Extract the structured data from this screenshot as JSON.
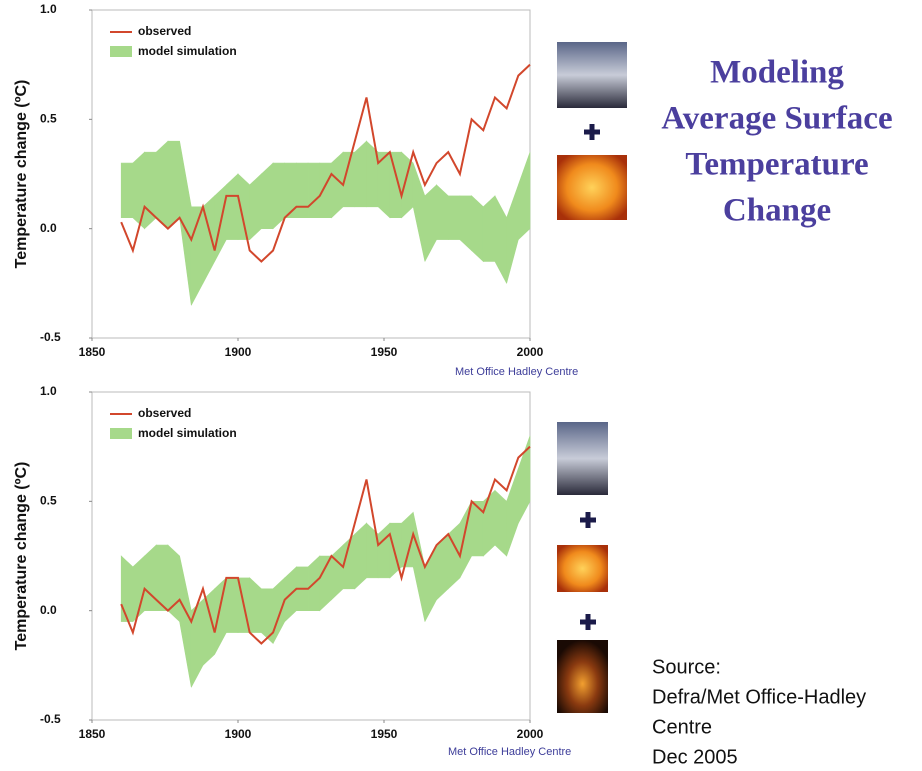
{
  "title_lines": [
    "Modeling",
    "Average Surface",
    "Temperature",
    "Change"
  ],
  "source_lines": [
    "Source:",
    "Defra/Met Office-Hadley",
    "Centre",
    "Dec 2005"
  ],
  "chart_data": [
    {
      "type": "line",
      "y_label": "Temperature change (ºC)",
      "credit": "Met Office Hadley Centre",
      "legend": "upper left",
      "xlim": [
        1850,
        2000
      ],
      "xticks": [
        1850,
        1900,
        1950,
        2000
      ],
      "ylim": [
        -0.5,
        1.0
      ],
      "yticks": [
        -0.5,
        {
          "value": 0,
          "label": "0.0"
        },
        0.5,
        {
          "value": 1.0,
          "label": "1.0"
        }
      ],
      "x": [
        1860,
        1864,
        1868,
        1872,
        1876,
        1880,
        1884,
        1888,
        1892,
        1896,
        1900,
        1904,
        1908,
        1912,
        1916,
        1920,
        1924,
        1928,
        1932,
        1936,
        1940,
        1944,
        1948,
        1952,
        1956,
        1960,
        1964,
        1968,
        1972,
        1976,
        1980,
        1984,
        1988,
        1992,
        1996,
        2000
      ],
      "series": [
        {
          "name": "observed",
          "color": "#d2472c",
          "values": [
            0.03,
            -0.1,
            0.1,
            0.05,
            0.0,
            0.05,
            -0.05,
            0.1,
            -0.1,
            0.15,
            0.15,
            -0.1,
            -0.15,
            -0.1,
            0.05,
            0.1,
            0.1,
            0.15,
            0.25,
            0.2,
            0.4,
            0.6,
            0.3,
            0.35,
            0.15,
            0.35,
            0.2,
            0.3,
            0.35,
            0.25,
            0.5,
            0.45,
            0.6,
            0.55,
            0.7,
            0.75
          ]
        }
      ],
      "bands": [
        {
          "name": "model simulation",
          "color": "#a6d98a",
          "lower": [
            0.05,
            0.05,
            0.0,
            0.05,
            0.0,
            0.05,
            -0.35,
            -0.25,
            -0.15,
            -0.05,
            -0.05,
            -0.05,
            0.0,
            0.0,
            0.05,
            0.05,
            0.05,
            0.05,
            0.05,
            0.1,
            0.1,
            0.1,
            0.1,
            0.05,
            0.05,
            0.1,
            -0.15,
            -0.05,
            -0.05,
            -0.05,
            -0.1,
            -0.15,
            -0.15,
            -0.25,
            -0.05,
            0.0
          ],
          "upper": [
            0.3,
            0.3,
            0.35,
            0.35,
            0.4,
            0.4,
            0.1,
            0.1,
            0.15,
            0.2,
            0.25,
            0.2,
            0.25,
            0.3,
            0.3,
            0.3,
            0.3,
            0.3,
            0.3,
            0.35,
            0.35,
            0.4,
            0.35,
            0.35,
            0.35,
            0.3,
            0.15,
            0.2,
            0.15,
            0.15,
            0.15,
            0.1,
            0.15,
            0.05,
            0.2,
            0.35
          ]
        }
      ]
    },
    {
      "type": "line",
      "y_label": "Temperature change (ºC)",
      "credit": "Met Office Hadley Centre",
      "legend": "upper left",
      "xlim": [
        1850,
        2000
      ],
      "xticks": [
        1850,
        1900,
        1950,
        2000
      ],
      "ylim": [
        -0.5,
        1.0
      ],
      "yticks": [
        -0.5,
        {
          "value": 0,
          "label": "0.0"
        },
        0.5,
        {
          "value": 1.0,
          "label": "1.0"
        }
      ],
      "x": [
        1860,
        1864,
        1868,
        1872,
        1876,
        1880,
        1884,
        1888,
        1892,
        1896,
        1900,
        1904,
        1908,
        1912,
        1916,
        1920,
        1924,
        1928,
        1932,
        1936,
        1940,
        1944,
        1948,
        1952,
        1956,
        1960,
        1964,
        1968,
        1972,
        1976,
        1980,
        1984,
        1988,
        1992,
        1996,
        2000
      ],
      "series": [
        {
          "name": "observed",
          "color": "#d2472c",
          "values": [
            0.03,
            -0.1,
            0.1,
            0.05,
            0.0,
            0.05,
            -0.05,
            0.1,
            -0.1,
            0.15,
            0.15,
            -0.1,
            -0.15,
            -0.1,
            0.05,
            0.1,
            0.1,
            0.15,
            0.25,
            0.2,
            0.4,
            0.6,
            0.3,
            0.35,
            0.15,
            0.35,
            0.2,
            0.3,
            0.35,
            0.25,
            0.5,
            0.45,
            0.6,
            0.55,
            0.7,
            0.75
          ]
        }
      ],
      "bands": [
        {
          "name": "model simulation",
          "color": "#a6d98a",
          "lower": [
            -0.05,
            -0.05,
            0.0,
            0.0,
            0.0,
            -0.05,
            -0.35,
            -0.25,
            -0.2,
            -0.1,
            -0.1,
            -0.1,
            -0.1,
            -0.15,
            -0.05,
            0.0,
            0.0,
            0.0,
            0.05,
            0.1,
            0.1,
            0.15,
            0.15,
            0.15,
            0.2,
            0.2,
            -0.05,
            0.05,
            0.1,
            0.15,
            0.25,
            0.25,
            0.3,
            0.25,
            0.4,
            0.5
          ],
          "upper": [
            0.25,
            0.2,
            0.25,
            0.3,
            0.3,
            0.25,
            0.0,
            0.05,
            0.1,
            0.15,
            0.15,
            0.15,
            0.1,
            0.1,
            0.15,
            0.2,
            0.2,
            0.25,
            0.25,
            0.3,
            0.35,
            0.4,
            0.35,
            0.4,
            0.4,
            0.45,
            0.2,
            0.3,
            0.35,
            0.4,
            0.5,
            0.5,
            0.55,
            0.5,
            0.65,
            0.8
          ]
        }
      ]
    }
  ]
}
